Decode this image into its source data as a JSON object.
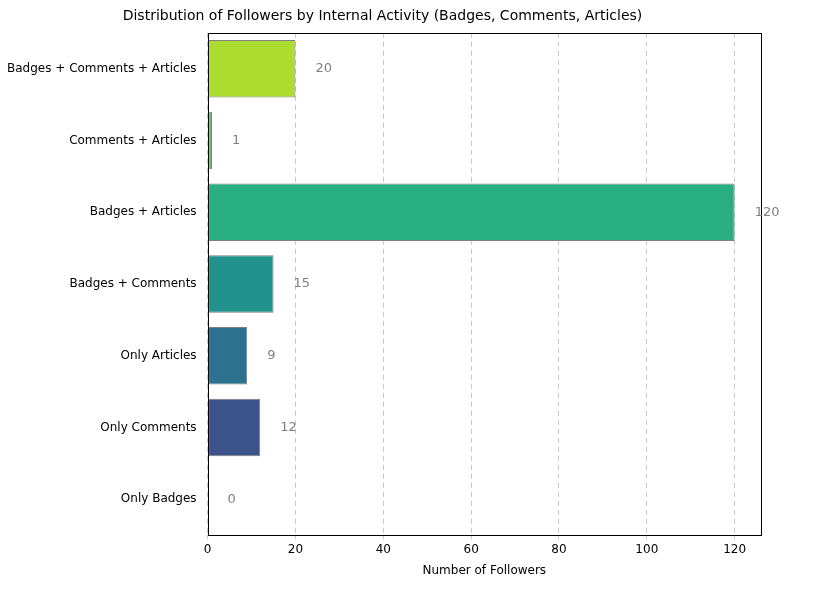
{
  "chart_data": {
    "type": "bar",
    "orientation": "horizontal",
    "title": "Distribution of Followers by Internal Activity (Badges, Comments, Articles)",
    "x_label": "Number of Followers",
    "categories": [
      "Badges + Comments + Articles",
      "Comments + Articles",
      "Badges + Articles",
      "Badges + Comments",
      "Only Articles",
      "Only Comments",
      "Only Badges"
    ],
    "values": [
      20,
      1,
      120,
      15,
      9,
      12,
      0
    ],
    "colors": [
      "#addc30",
      "#5ec962",
      "#28ae80",
      "#21918c",
      "#2c728e",
      "#3b528b",
      "#440154"
    ],
    "xlim": [
      0,
      126
    ],
    "xticks": [
      0,
      20,
      40,
      60,
      80,
      100,
      120
    ],
    "grid": true,
    "data_labels": true
  }
}
